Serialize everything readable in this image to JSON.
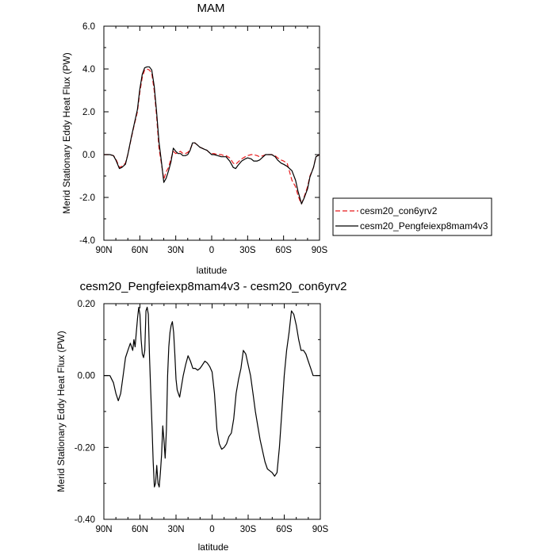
{
  "chart_data": [
    {
      "type": "line",
      "title": "MAM",
      "xlabel": "latitude",
      "ylabel": "Merid Stationary Eddy Heat Flux (PW)",
      "xlim": [
        90,
        -90
      ],
      "ylim": [
        -4.0,
        6.0
      ],
      "x_ticks": [
        90,
        60,
        30,
        0,
        -30,
        -60,
        -90
      ],
      "x_tick_labels": [
        "90N",
        "60N",
        "30N",
        "0",
        "30S",
        "60S",
        "90S"
      ],
      "y_ticks": [
        -4,
        -2,
        0,
        2,
        4,
        6
      ],
      "y_tick_labels": [
        "-4.0",
        "-2.0",
        "0.0",
        "2.0",
        "4.0",
        "6.0"
      ],
      "legend": "outside-right",
      "series": [
        {
          "name": "cesm20_con6yrv2",
          "color": "#e8191b",
          "dash": "dashed",
          "x": [
            90,
            85,
            82,
            80,
            77,
            75,
            72,
            70,
            67,
            65,
            62,
            60,
            58,
            56,
            54,
            52,
            50,
            48,
            46,
            44,
            42,
            40,
            38,
            36,
            34,
            32,
            30,
            28,
            26,
            24,
            22,
            20,
            18,
            16,
            14,
            12,
            10,
            8,
            6,
            4,
            2,
            0,
            -2,
            -5,
            -8,
            -10,
            -12,
            -15,
            -18,
            -20,
            -22,
            -25,
            -28,
            -30,
            -33,
            -35,
            -38,
            -40,
            -43,
            -45,
            -48,
            -50,
            -53,
            -55,
            -58,
            -60,
            -63,
            -65,
            -67,
            -70,
            -72,
            -74,
            -75,
            -77,
            -80,
            -82,
            -85,
            -87,
            -90
          ],
          "values": [
            0.0,
            0.0,
            -0.05,
            -0.2,
            -0.6,
            -0.55,
            -0.4,
            0.0,
            0.8,
            1.3,
            2.0,
            2.9,
            3.6,
            3.95,
            4.0,
            3.95,
            3.8,
            3.0,
            1.8,
            0.3,
            -0.4,
            -1.15,
            -0.8,
            -0.6,
            -0.2,
            0.15,
            0.05,
            0.1,
            0.15,
            0.05,
            0.05,
            0.1,
            0.25,
            0.5,
            0.55,
            0.45,
            0.35,
            0.3,
            0.25,
            0.2,
            0.1,
            0.05,
            0.05,
            0.0,
            0.0,
            -0.05,
            -0.05,
            -0.15,
            -0.4,
            -0.45,
            -0.35,
            -0.2,
            -0.1,
            -0.05,
            0.0,
            0.0,
            -0.05,
            -0.1,
            -0.05,
            0.0,
            0.0,
            0.0,
            -0.05,
            -0.15,
            -0.25,
            -0.3,
            -0.4,
            -0.8,
            -1.2,
            -1.5,
            -1.9,
            -2.2,
            -2.3,
            -2.0,
            -1.5,
            -1.0,
            -0.6,
            -0.1,
            0.0
          ]
        },
        {
          "name": "cesm20_Pengfeiexp8mam4v3",
          "color": "#000000",
          "dash": "solid",
          "x": [
            90,
            85,
            82,
            80,
            77,
            75,
            72,
            70,
            67,
            65,
            62,
            60,
            58,
            56,
            54,
            52,
            50,
            48,
            46,
            44,
            42,
            40,
            38,
            36,
            34,
            32,
            30,
            28,
            26,
            24,
            22,
            20,
            18,
            16,
            14,
            12,
            10,
            8,
            6,
            4,
            2,
            0,
            -2,
            -5,
            -8,
            -10,
            -12,
            -15,
            -18,
            -20,
            -22,
            -25,
            -28,
            -30,
            -33,
            -35,
            -38,
            -40,
            -43,
            -45,
            -48,
            -50,
            -53,
            -55,
            -58,
            -60,
            -63,
            -65,
            -67,
            -70,
            -72,
            -74,
            -75,
            -77,
            -80,
            -82,
            -85,
            -87,
            -90
          ],
          "values": [
            0.0,
            0.0,
            -0.05,
            -0.25,
            -0.65,
            -0.6,
            -0.45,
            0.0,
            0.85,
            1.35,
            2.1,
            3.05,
            3.75,
            4.05,
            4.1,
            4.1,
            3.95,
            3.2,
            2.0,
            0.6,
            -0.3,
            -1.3,
            -1.1,
            -0.75,
            -0.35,
            0.3,
            0.15,
            0.05,
            0.05,
            -0.05,
            -0.05,
            0.0,
            0.2,
            0.55,
            0.55,
            0.45,
            0.35,
            0.3,
            0.25,
            0.2,
            0.1,
            0.0,
            0.0,
            -0.05,
            -0.1,
            -0.1,
            -0.1,
            -0.3,
            -0.6,
            -0.65,
            -0.5,
            -0.3,
            -0.2,
            -0.15,
            -0.2,
            -0.3,
            -0.3,
            -0.25,
            -0.1,
            0.0,
            0.0,
            0.0,
            -0.1,
            -0.25,
            -0.4,
            -0.45,
            -0.55,
            -0.65,
            -0.75,
            -1.2,
            -1.7,
            -2.1,
            -2.3,
            -2.05,
            -1.6,
            -1.05,
            -0.6,
            -0.1,
            0.0
          ]
        }
      ]
    },
    {
      "type": "line",
      "title": "cesm20_Pengfeiexp8mam4v3 - cesm20_con6yrv2",
      "xlabel": "latitude",
      "ylabel": "Merid Stationary Eddy Heat Flux (PW)",
      "xlim": [
        90,
        -90
      ],
      "ylim": [
        -0.4,
        0.2
      ],
      "x_ticks": [
        90,
        60,
        30,
        0,
        -30,
        -60,
        -90
      ],
      "x_tick_labels": [
        "90N",
        "60N",
        "30N",
        "0",
        "30S",
        "60S",
        "90S"
      ],
      "y_ticks": [
        -0.4,
        -0.2,
        0.0,
        0.2
      ],
      "y_tick_labels": [
        "-0.40",
        "-0.20",
        "0.00",
        "0.20"
      ],
      "series": [
        {
          "color": "#000000",
          "dash": "solid",
          "x": [
            90,
            85,
            82,
            80,
            78,
            76,
            74,
            72,
            70,
            68,
            66,
            65,
            64,
            63,
            62,
            61,
            60,
            59,
            58,
            57,
            56,
            55,
            54,
            53,
            52,
            51,
            50,
            49,
            48,
            47,
            46,
            45,
            44,
            43,
            42,
            41,
            40,
            39,
            38,
            37,
            36,
            35,
            34,
            33,
            32,
            31,
            30,
            29,
            28,
            27,
            26,
            25,
            24,
            22,
            20,
            18,
            16,
            14,
            12,
            10,
            8,
            6,
            4,
            2,
            0,
            -2,
            -4,
            -6,
            -8,
            -10,
            -12,
            -14,
            -16,
            -18,
            -20,
            -22,
            -24,
            -26,
            -28,
            -30,
            -32,
            -34,
            -36,
            -38,
            -40,
            -42,
            -44,
            -46,
            -48,
            -50,
            -52,
            -54,
            -56,
            -58,
            -60,
            -62,
            -64,
            -66,
            -68,
            -70,
            -72,
            -74,
            -76,
            -78,
            -80,
            -82,
            -84,
            -86,
            -88,
            -90
          ],
          "values": [
            0.0,
            0.0,
            -0.02,
            -0.05,
            -0.07,
            -0.05,
            0.0,
            0.05,
            0.07,
            0.09,
            0.07,
            0.1,
            0.08,
            0.12,
            0.16,
            0.19,
            0.17,
            0.1,
            0.06,
            0.05,
            0.07,
            0.18,
            0.19,
            0.17,
            0.05,
            -0.05,
            -0.14,
            -0.24,
            -0.31,
            -0.3,
            -0.25,
            -0.3,
            -0.31,
            -0.27,
            -0.22,
            -0.14,
            -0.18,
            -0.23,
            -0.15,
            0.0,
            0.08,
            0.12,
            0.14,
            0.15,
            0.12,
            0.06,
            -0.01,
            -0.04,
            -0.05,
            -0.06,
            -0.04,
            -0.02,
            0.0,
            0.03,
            0.055,
            0.04,
            0.02,
            0.02,
            0.015,
            0.02,
            0.03,
            0.04,
            0.035,
            0.025,
            0.01,
            -0.05,
            -0.15,
            -0.19,
            -0.205,
            -0.2,
            -0.19,
            -0.17,
            -0.16,
            -0.12,
            -0.05,
            -0.01,
            0.02,
            0.07,
            0.06,
            0.03,
            0.0,
            -0.05,
            -0.1,
            -0.14,
            -0.18,
            -0.21,
            -0.24,
            -0.26,
            -0.265,
            -0.27,
            -0.28,
            -0.27,
            -0.2,
            -0.1,
            0.0,
            0.07,
            0.12,
            0.18,
            0.17,
            0.14,
            0.1,
            0.07,
            0.07,
            0.06,
            0.04,
            0.02,
            0.0,
            0.0,
            0.0,
            0.0
          ]
        }
      ]
    }
  ]
}
